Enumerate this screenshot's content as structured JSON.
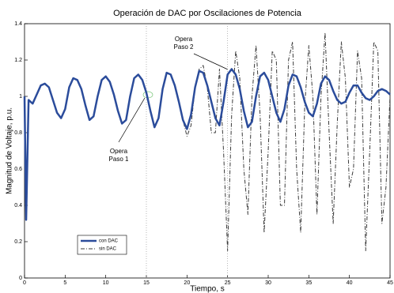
{
  "chart_data": {
    "type": "line",
    "title": "Operación de DAC por Oscilaciones de Potencia",
    "xlabel": "Tiempo, s",
    "ylabel": "Magnitud de Voltaje, p.u.",
    "x": [
      0,
      0.2,
      0.5,
      1,
      1.5,
      2,
      2.5,
      3,
      3.5,
      4,
      4.5,
      5,
      5.5,
      6,
      6.5,
      7,
      7.5,
      8,
      8.5,
      9,
      9.5,
      10,
      10.5,
      11,
      11.5,
      12,
      12.5,
      13,
      13.5,
      14,
      14.5,
      15,
      15.5,
      16,
      16.5,
      17,
      17.5,
      18,
      18.5,
      19,
      19.5,
      20,
      20.5,
      21,
      21.5,
      22,
      22.5,
      23,
      23.5,
      24,
      24.5,
      25,
      25.5,
      26,
      26.5,
      27,
      27.5,
      28,
      28.5,
      29,
      29.5,
      30,
      30.5,
      31,
      31.5,
      32,
      32.5,
      33,
      33.5,
      34,
      34.5,
      35,
      35.5,
      36,
      36.5,
      37,
      37.5,
      38,
      38.5,
      39,
      39.5,
      40,
      40.5,
      41,
      41.5,
      42,
      42.5,
      43,
      43.5,
      44,
      44.5,
      45
    ],
    "series": [
      {
        "name": "con DAC",
        "color": "#2b4c9b",
        "dash": "none",
        "width": 2.5,
        "values": [
          1.0,
          0.32,
          0.98,
          0.96,
          1.01,
          1.06,
          1.07,
          1.05,
          0.98,
          0.91,
          0.88,
          0.93,
          1.05,
          1.1,
          1.09,
          1.04,
          0.95,
          0.87,
          0.89,
          1.0,
          1.09,
          1.11,
          1.08,
          1.01,
          0.92,
          0.85,
          0.87,
          1.0,
          1.1,
          1.12,
          1.09,
          1.02,
          0.92,
          0.83,
          0.88,
          1.04,
          1.13,
          1.12,
          1.06,
          0.97,
          0.87,
          0.82,
          0.9,
          1.05,
          1.14,
          1.13,
          1.06,
          0.97,
          0.88,
          0.84,
          0.97,
          1.12,
          1.15,
          1.12,
          1.04,
          0.92,
          0.83,
          0.86,
          1.0,
          1.11,
          1.13,
          1.09,
          1.0,
          0.91,
          0.86,
          0.93,
          1.06,
          1.12,
          1.11,
          1.05,
          0.97,
          0.91,
          0.89,
          0.96,
          1.07,
          1.11,
          1.09,
          1.03,
          0.98,
          0.96,
          0.97,
          1.02,
          1.06,
          1.06,
          1.02,
          0.99,
          0.98,
          1.0,
          1.03,
          1.04,
          1.03,
          1.01
        ]
      },
      {
        "name": "sin DAC",
        "color": "#3a3a3a",
        "dash": "5,2,1,2",
        "width": 1,
        "values": [
          1.0,
          0.32,
          0.98,
          0.96,
          1.01,
          1.06,
          1.07,
          1.05,
          0.98,
          0.91,
          0.88,
          0.93,
          1.05,
          1.1,
          1.09,
          1.04,
          0.95,
          0.87,
          0.89,
          1.0,
          1.09,
          1.11,
          1.08,
          1.01,
          0.92,
          0.85,
          0.87,
          1.0,
          1.1,
          1.12,
          1.09,
          1.02,
          0.92,
          0.83,
          0.88,
          1.04,
          1.13,
          1.12,
          1.06,
          0.97,
          0.87,
          0.78,
          0.84,
          1.05,
          1.15,
          1.17,
          1.05,
          0.8,
          0.8,
          1.15,
          0.7,
          0.15,
          0.9,
          1.25,
          1.1,
          0.6,
          0.35,
          1.0,
          1.28,
          0.9,
          0.25,
          0.7,
          1.25,
          1.2,
          0.4,
          0.4,
          1.2,
          1.3,
          0.6,
          0.25,
          0.95,
          1.28,
          1.0,
          0.35,
          1.0,
          1.35,
          0.8,
          0.3,
          0.85,
          1.3,
          1.1,
          0.5,
          0.6,
          1.25,
          1.1,
          0.15,
          0.7,
          1.3,
          1.25,
          0.3,
          0.5,
          1.0
        ]
      }
    ],
    "xlim": [
      0,
      45
    ],
    "ylim": [
      0,
      1.4
    ],
    "xticks": [
      0,
      5,
      10,
      15,
      20,
      25,
      30,
      35,
      40,
      45
    ],
    "yticks": [
      0,
      0.2,
      0.4,
      0.6,
      0.8,
      1,
      1.2,
      1.4
    ],
    "vlines": [
      15,
      25
    ],
    "legend": "lower left",
    "annotations": [
      {
        "lines": [
          "Opera",
          "Paso 1"
        ]
      },
      {
        "lines": [
          "Opera",
          "Paso 2"
        ]
      }
    ]
  }
}
